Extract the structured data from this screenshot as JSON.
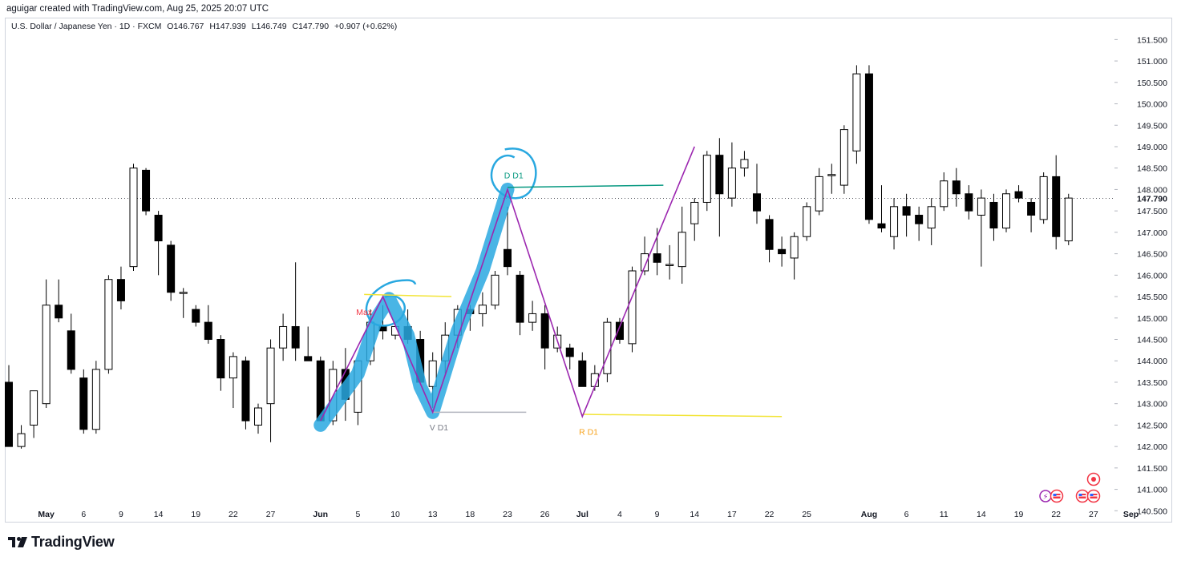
{
  "header": {
    "attribution": "aguigar created with TradingView.com, Aug 25, 2025 20:07 UTC"
  },
  "legend": {
    "symbol": "U.S. Dollar / Japanese Yen · 1D · FXCM",
    "open": "O146.767",
    "high": "H147.939",
    "low": "L146.749",
    "close": "C147.790",
    "change": "+0.907 (+0.62%)"
  },
  "brand": {
    "name": "TradingView"
  },
  "colors": {
    "up_body": "#ffffff",
    "down_body": "#000000",
    "candle_edge": "#000000",
    "pattern_line": "#9c27b0",
    "highlight": "#29a8e0",
    "d_label": "#089981",
    "r_label": "#f7a21b",
    "v_label": "#787b86",
    "max_label": "#f23645",
    "r_line": "#f2e436",
    "d_line": "#089981"
  },
  "chart_data": {
    "type": "candlestick",
    "title": "U.S. Dollar / Japanese Yen",
    "timeframe": "1D",
    "source": "FXCM",
    "ylim": [
      140.3,
      151.75
    ],
    "y_ticks": [
      "151.500",
      "151.000",
      "150.500",
      "150.000",
      "149.500",
      "149.000",
      "148.500",
      "148.000",
      "147.500",
      "147.000",
      "146.500",
      "146.000",
      "145.500",
      "145.000",
      "144.500",
      "144.000",
      "143.500",
      "143.000",
      "142.500",
      "142.000",
      "141.500",
      "141.000",
      "140.500"
    ],
    "current_price": "147.790",
    "x_ticks": [
      {
        "label": "May",
        "i": 3,
        "bold": true
      },
      {
        "label": "6",
        "i": 6
      },
      {
        "label": "9",
        "i": 9
      },
      {
        "label": "14",
        "i": 12
      },
      {
        "label": "19",
        "i": 15
      },
      {
        "label": "22",
        "i": 18
      },
      {
        "label": "27",
        "i": 21
      },
      {
        "label": "Jun",
        "i": 25,
        "bold": true
      },
      {
        "label": "5",
        "i": 28
      },
      {
        "label": "10",
        "i": 31
      },
      {
        "label": "13",
        "i": 34
      },
      {
        "label": "18",
        "i": 37
      },
      {
        "label": "23",
        "i": 40
      },
      {
        "label": "26",
        "i": 43
      },
      {
        "label": "Jul",
        "i": 46,
        "bold": true
      },
      {
        "label": "4",
        "i": 49
      },
      {
        "label": "9",
        "i": 52
      },
      {
        "label": "14",
        "i": 55
      },
      {
        "label": "17",
        "i": 58
      },
      {
        "label": "22",
        "i": 61
      },
      {
        "label": "25",
        "i": 64
      },
      {
        "label": "Aug",
        "i": 69,
        "bold": true
      },
      {
        "label": "6",
        "i": 72
      },
      {
        "label": "11",
        "i": 75
      },
      {
        "label": "14",
        "i": 78
      },
      {
        "label": "19",
        "i": 81
      },
      {
        "label": "22",
        "i": 84
      },
      {
        "label": "27",
        "i": 87
      },
      {
        "label": "Sep",
        "i": 90,
        "bold": true
      }
    ],
    "candles": [
      {
        "o": 143.5,
        "h": 143.9,
        "l": 142.0,
        "c": 142.0
      },
      {
        "o": 142.0,
        "h": 142.5,
        "l": 141.95,
        "c": 142.3
      },
      {
        "o": 142.5,
        "h": 143.2,
        "l": 142.2,
        "c": 143.3
      },
      {
        "o": 143.0,
        "h": 145.9,
        "l": 142.9,
        "c": 145.3
      },
      {
        "o": 145.3,
        "h": 145.9,
        "l": 144.9,
        "c": 145.0
      },
      {
        "o": 144.7,
        "h": 145.1,
        "l": 143.7,
        "c": 143.8
      },
      {
        "o": 143.6,
        "h": 143.8,
        "l": 142.3,
        "c": 142.4
      },
      {
        "o": 142.4,
        "h": 144.0,
        "l": 142.3,
        "c": 143.8
      },
      {
        "o": 143.8,
        "h": 146.0,
        "l": 143.7,
        "c": 145.9
      },
      {
        "o": 145.9,
        "h": 146.2,
        "l": 145.2,
        "c": 145.4
      },
      {
        "o": 146.2,
        "h": 148.6,
        "l": 146.1,
        "c": 148.5
      },
      {
        "o": 148.45,
        "h": 148.5,
        "l": 147.4,
        "c": 147.5
      },
      {
        "o": 147.4,
        "h": 147.5,
        "l": 146.0,
        "c": 146.8
      },
      {
        "o": 146.7,
        "h": 146.8,
        "l": 145.4,
        "c": 145.6
      },
      {
        "o": 145.6,
        "h": 145.7,
        "l": 145.0,
        "c": 145.6
      },
      {
        "o": 145.2,
        "h": 145.3,
        "l": 144.8,
        "c": 144.9
      },
      {
        "o": 144.9,
        "h": 145.3,
        "l": 144.4,
        "c": 144.5
      },
      {
        "o": 144.5,
        "h": 144.6,
        "l": 143.3,
        "c": 143.6
      },
      {
        "o": 143.6,
        "h": 144.2,
        "l": 142.9,
        "c": 144.1
      },
      {
        "o": 144.0,
        "h": 144.1,
        "l": 142.4,
        "c": 142.6
      },
      {
        "o": 142.5,
        "h": 143.0,
        "l": 142.3,
        "c": 142.9
      },
      {
        "o": 143.0,
        "h": 144.5,
        "l": 142.1,
        "c": 144.3
      },
      {
        "o": 144.3,
        "h": 145.1,
        "l": 144.0,
        "c": 144.8
      },
      {
        "o": 144.8,
        "h": 146.3,
        "l": 144.0,
        "c": 144.3
      },
      {
        "o": 144.1,
        "h": 144.8,
        "l": 144.0,
        "c": 144.0
      },
      {
        "o": 144.0,
        "h": 144.1,
        "l": 142.6,
        "c": 142.6
      },
      {
        "o": 142.6,
        "h": 144.0,
        "l": 142.5,
        "c": 143.8
      },
      {
        "o": 143.8,
        "h": 144.3,
        "l": 142.6,
        "c": 143.1
      },
      {
        "o": 142.8,
        "h": 143.9,
        "l": 142.5,
        "c": 144.0
      },
      {
        "o": 144.0,
        "h": 145.2,
        "l": 143.9,
        "c": 144.9
      },
      {
        "o": 144.8,
        "h": 145.3,
        "l": 144.5,
        "c": 144.7
      },
      {
        "o": 144.6,
        "h": 144.9,
        "l": 144.5,
        "c": 144.8
      },
      {
        "o": 144.8,
        "h": 145.2,
        "l": 144.4,
        "c": 144.5
      },
      {
        "o": 144.5,
        "h": 144.7,
        "l": 143.5,
        "c": 143.5
      },
      {
        "o": 143.4,
        "h": 144.2,
        "l": 142.9,
        "c": 144.0
      },
      {
        "o": 144.0,
        "h": 144.9,
        "l": 143.7,
        "c": 144.6
      },
      {
        "o": 144.6,
        "h": 145.3,
        "l": 144.3,
        "c": 145.2
      },
      {
        "o": 145.2,
        "h": 145.3,
        "l": 144.7,
        "c": 145.1
      },
      {
        "o": 145.1,
        "h": 145.6,
        "l": 144.8,
        "c": 145.3
      },
      {
        "o": 145.3,
        "h": 146.1,
        "l": 145.2,
        "c": 146.0
      },
      {
        "o": 146.6,
        "h": 147.6,
        "l": 146.0,
        "c": 146.2
      },
      {
        "o": 146.0,
        "h": 146.1,
        "l": 144.6,
        "c": 144.9
      },
      {
        "o": 144.9,
        "h": 145.4,
        "l": 144.7,
        "c": 145.1
      },
      {
        "o": 145.1,
        "h": 145.3,
        "l": 143.8,
        "c": 144.3
      },
      {
        "o": 144.3,
        "h": 144.8,
        "l": 144.2,
        "c": 144.6
      },
      {
        "o": 144.3,
        "h": 144.4,
        "l": 143.8,
        "c": 144.1
      },
      {
        "o": 144.0,
        "h": 144.2,
        "l": 143.4,
        "c": 143.4
      },
      {
        "o": 143.4,
        "h": 143.9,
        "l": 143.3,
        "c": 143.7
      },
      {
        "o": 143.7,
        "h": 145.0,
        "l": 143.5,
        "c": 144.9
      },
      {
        "o": 144.9,
        "h": 145.0,
        "l": 144.4,
        "c": 144.5
      },
      {
        "o": 144.4,
        "h": 146.2,
        "l": 144.2,
        "c": 146.1
      },
      {
        "o": 146.1,
        "h": 146.9,
        "l": 146.0,
        "c": 146.5
      },
      {
        "o": 146.5,
        "h": 147.1,
        "l": 146.0,
        "c": 146.3
      },
      {
        "o": 146.25,
        "h": 146.7,
        "l": 145.9,
        "c": 146.25
      },
      {
        "o": 146.2,
        "h": 147.6,
        "l": 145.8,
        "c": 147.0
      },
      {
        "o": 147.2,
        "h": 147.8,
        "l": 146.8,
        "c": 147.7
      },
      {
        "o": 147.7,
        "h": 148.9,
        "l": 147.5,
        "c": 148.8
      },
      {
        "o": 148.8,
        "h": 149.2,
        "l": 146.9,
        "c": 147.9
      },
      {
        "o": 147.8,
        "h": 149.1,
        "l": 147.6,
        "c": 148.5
      },
      {
        "o": 148.5,
        "h": 148.9,
        "l": 148.3,
        "c": 148.7
      },
      {
        "o": 147.9,
        "h": 148.6,
        "l": 147.2,
        "c": 147.5
      },
      {
        "o": 147.3,
        "h": 147.4,
        "l": 146.3,
        "c": 146.6
      },
      {
        "o": 146.6,
        "h": 146.9,
        "l": 146.2,
        "c": 146.5
      },
      {
        "o": 146.4,
        "h": 147.0,
        "l": 145.9,
        "c": 146.9
      },
      {
        "o": 146.9,
        "h": 147.7,
        "l": 146.8,
        "c": 147.6
      },
      {
        "o": 147.5,
        "h": 148.5,
        "l": 147.4,
        "c": 148.3
      },
      {
        "o": 148.35,
        "h": 148.6,
        "l": 147.9,
        "c": 148.35
      },
      {
        "o": 148.1,
        "h": 149.5,
        "l": 147.9,
        "c": 149.4
      },
      {
        "o": 148.9,
        "h": 150.9,
        "l": 148.6,
        "c": 150.7
      },
      {
        "o": 150.7,
        "h": 150.9,
        "l": 147.2,
        "c": 147.3
      },
      {
        "o": 147.2,
        "h": 148.1,
        "l": 147.0,
        "c": 147.1
      },
      {
        "o": 146.9,
        "h": 147.8,
        "l": 146.6,
        "c": 147.6
      },
      {
        "o": 147.6,
        "h": 147.9,
        "l": 146.9,
        "c": 147.4
      },
      {
        "o": 147.4,
        "h": 147.6,
        "l": 146.8,
        "c": 147.2
      },
      {
        "o": 147.1,
        "h": 147.8,
        "l": 146.7,
        "c": 147.6
      },
      {
        "o": 147.6,
        "h": 148.4,
        "l": 147.5,
        "c": 148.2
      },
      {
        "o": 148.2,
        "h": 148.5,
        "l": 147.6,
        "c": 147.9
      },
      {
        "o": 147.9,
        "h": 148.1,
        "l": 147.3,
        "c": 147.5
      },
      {
        "o": 147.4,
        "h": 148.0,
        "l": 146.2,
        "c": 147.8
      },
      {
        "o": 147.7,
        "h": 147.9,
        "l": 146.8,
        "c": 147.1
      },
      {
        "o": 147.1,
        "h": 148.0,
        "l": 147.0,
        "c": 147.9
      },
      {
        "o": 147.95,
        "h": 148.1,
        "l": 147.7,
        "c": 147.8
      },
      {
        "o": 147.7,
        "h": 147.8,
        "l": 147.0,
        "c": 147.4
      },
      {
        "o": 147.3,
        "h": 148.4,
        "l": 147.2,
        "c": 148.3
      },
      {
        "o": 148.3,
        "h": 148.8,
        "l": 146.6,
        "c": 146.9
      },
      {
        "o": 146.8,
        "h": 147.9,
        "l": 146.7,
        "c": 147.8
      }
    ],
    "pattern": {
      "path": [
        [
          25,
          142.6
        ],
        [
          30,
          145.5
        ],
        [
          34,
          142.8
        ],
        [
          40,
          148.0
        ],
        [
          46,
          142.7
        ],
        [
          55,
          149.0
        ]
      ],
      "labels": [
        {
          "text": "Max",
          "i": 28.5,
          "y": 145.3,
          "color": "#f23645"
        },
        {
          "text": "V D1",
          "i": 34.5,
          "y": 142.6,
          "color": "#787b86"
        },
        {
          "text": "D D1",
          "i": 40.5,
          "y": 148.15,
          "color": "#089981"
        },
        {
          "text": "R D1",
          "i": 46.5,
          "y": 142.5,
          "color": "#f7a21b"
        }
      ],
      "levels": [
        {
          "i0": 28.5,
          "i1": 35.5,
          "y0": 145.55,
          "y1": 145.5,
          "color": "#f2e436"
        },
        {
          "i0": 34,
          "i1": 41.5,
          "y0": 142.8,
          "y1": 142.8,
          "color": "#b2b5be"
        },
        {
          "i0": 40,
          "i1": 52.5,
          "y0": 148.05,
          "y1": 148.1,
          "color": "#089981"
        },
        {
          "i0": 46,
          "i1": 62,
          "y0": 142.75,
          "y1": 142.7,
          "color": "#f2e436"
        }
      ]
    }
  }
}
